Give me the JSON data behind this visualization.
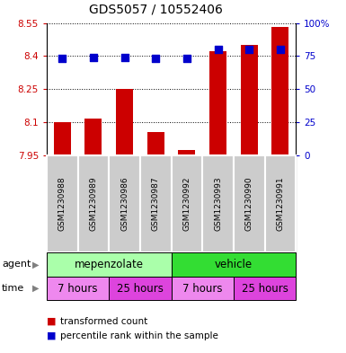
{
  "title": "GDS5057 / 10552406",
  "samples": [
    "GSM1230988",
    "GSM1230989",
    "GSM1230986",
    "GSM1230987",
    "GSM1230992",
    "GSM1230993",
    "GSM1230990",
    "GSM1230991"
  ],
  "red_values": [
    8.1,
    8.115,
    8.25,
    8.055,
    7.975,
    8.42,
    8.45,
    8.53
  ],
  "blue_values": [
    73,
    74,
    74,
    73,
    73,
    80,
    80,
    80
  ],
  "bar_baseline": 7.95,
  "ylim_left": [
    7.95,
    8.55
  ],
  "ylim_right": [
    0,
    100
  ],
  "yticks_left": [
    7.95,
    8.1,
    8.25,
    8.4,
    8.55
  ],
  "yticks_right": [
    0,
    25,
    50,
    75,
    100
  ],
  "ytick_labels_left": [
    "7.95",
    "8.1",
    "8.25",
    "8.4",
    "8.55"
  ],
  "ytick_labels_right": [
    "0",
    "25",
    "50",
    "75",
    "100%"
  ],
  "bar_color": "#cc0000",
  "dot_color": "#0000cc",
  "agent_groups": [
    {
      "label": "mepenzolate",
      "start": 0,
      "end": 4,
      "color": "#aaffaa"
    },
    {
      "label": "vehicle",
      "start": 4,
      "end": 8,
      "color": "#33dd33"
    }
  ],
  "time_groups": [
    {
      "label": "7 hours",
      "start": 0,
      "end": 2,
      "color": "#ee88ee"
    },
    {
      "label": "25 hours",
      "start": 2,
      "end": 4,
      "color": "#dd44dd"
    },
    {
      "label": "7 hours",
      "start": 4,
      "end": 6,
      "color": "#ee88ee"
    },
    {
      "label": "25 hours",
      "start": 6,
      "end": 8,
      "color": "#dd44dd"
    }
  ],
  "legend_items": [
    {
      "label": "transformed count",
      "color": "#cc0000"
    },
    {
      "label": "percentile rank within the sample",
      "color": "#0000cc"
    }
  ],
  "bar_width": 0.55,
  "dot_size": 40,
  "grid_color": "#000000",
  "tick_label_color_left": "#cc0000",
  "tick_label_color_right": "#0000cc",
  "sample_area_color": "#cccccc"
}
